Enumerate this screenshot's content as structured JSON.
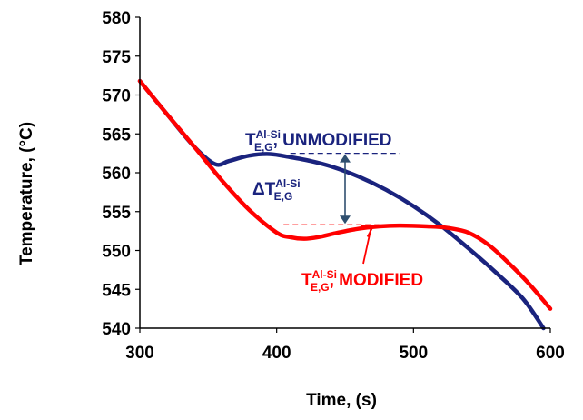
{
  "chart_data": {
    "type": "line",
    "title": "",
    "xlabel": "Time, (s)",
    "ylabel": "Temperature, (°C)",
    "xlim": [
      300,
      600
    ],
    "ylim": [
      540,
      580
    ],
    "x_ticks": [
      "300",
      "400",
      "500",
      "600"
    ],
    "y_ticks": [
      "540",
      "545",
      "550",
      "555",
      "560",
      "565",
      "570",
      "575",
      "580"
    ],
    "grid": false,
    "series": [
      {
        "name": "UNMODIFIED",
        "color": "#1a237e",
        "x": [
          300,
          320,
          340,
          355,
          365,
          380,
          395,
          410,
          425,
          440,
          460,
          480,
          500,
          520,
          540,
          560,
          580,
          595
        ],
        "y": [
          571.8,
          567.5,
          563.3,
          561.1,
          561.5,
          562.2,
          562.4,
          562.0,
          561.5,
          560.8,
          559.5,
          557.8,
          555.7,
          553.2,
          550.3,
          547.2,
          543.8,
          540.0
        ]
      },
      {
        "name": "MODIFIED",
        "color": "#ff0000",
        "x": [
          300,
          320,
          340,
          360,
          380,
          400,
          410,
          420,
          430,
          445,
          460,
          475,
          490,
          510,
          525,
          540,
          555,
          570,
          585,
          600
        ],
        "y": [
          571.8,
          567.5,
          563.3,
          559.0,
          555.2,
          552.3,
          551.7,
          551.5,
          551.7,
          552.3,
          552.8,
          553.1,
          553.2,
          553.1,
          552.9,
          552.3,
          550.7,
          548.3,
          545.6,
          542.5
        ]
      }
    ],
    "annotations": {
      "unmodified": {
        "main": "T",
        "sup": "Al-Si",
        "sub": "E,G",
        "rest": ", UNMODIFIED"
      },
      "delta": {
        "main": "ΔT",
        "sup": "Al-Si",
        "sub": "E,G"
      },
      "modified": {
        "main": "T",
        "sup": "Al-Si",
        "sub": "E,G",
        "rest": ", MODIFIED"
      },
      "unmodified_level": 562.5,
      "modified_level": 553.3,
      "delta_x": 450
    }
  },
  "colors": {
    "unmodified": "#1a237e",
    "modified": "#ff0000",
    "axis": "#000000"
  }
}
